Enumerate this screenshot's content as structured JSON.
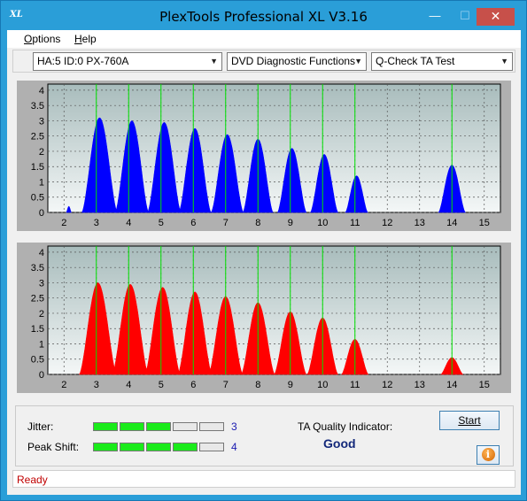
{
  "window": {
    "title": "PlexTools Professional XL V3.16",
    "icon_text": "XL",
    "min_glyph": "—",
    "max_glyph": "☐",
    "close_glyph": "✕"
  },
  "menu": {
    "options": {
      "mnemonic": "O",
      "rest": "ptions"
    },
    "help": {
      "mnemonic": "H",
      "rest": "elp"
    }
  },
  "toolbar": {
    "drive": "HA:5 ID:0  PX-760A",
    "function": "DVD Diagnostic Functions",
    "test": "Q-Check TA Test"
  },
  "chart_data": [
    {
      "type": "area",
      "name": "blue",
      "color": "#0000ff",
      "x_ticks": [
        "2",
        "3",
        "4",
        "5",
        "6",
        "7",
        "8",
        "9",
        "10",
        "11",
        "12",
        "13",
        "14",
        "15"
      ],
      "y_ticks": [
        "4",
        "3.5",
        "3",
        "2.5",
        "2",
        "1.5",
        "1",
        "0.5",
        "0"
      ],
      "xlim": [
        1.5,
        15.5
      ],
      "ylim": [
        0,
        4.2
      ],
      "grid": true,
      "green_markers": [
        3,
        4,
        5,
        6,
        7,
        8,
        9,
        10,
        11,
        14
      ],
      "peaks": [
        {
          "x": 2.15,
          "height": 0.2,
          "half_width": 0.08
        },
        {
          "x": 3.1,
          "height": 3.1,
          "half_width": 0.55
        },
        {
          "x": 4.1,
          "height": 3.0,
          "half_width": 0.52
        },
        {
          "x": 5.1,
          "height": 2.95,
          "half_width": 0.52
        },
        {
          "x": 6.05,
          "height": 2.75,
          "half_width": 0.5
        },
        {
          "x": 7.05,
          "height": 2.55,
          "half_width": 0.5
        },
        {
          "x": 8.0,
          "height": 2.4,
          "half_width": 0.47
        },
        {
          "x": 9.05,
          "height": 2.1,
          "half_width": 0.45
        },
        {
          "x": 10.05,
          "height": 1.9,
          "half_width": 0.43
        },
        {
          "x": 11.05,
          "height": 1.2,
          "half_width": 0.35
        },
        {
          "x": 14.0,
          "height": 1.55,
          "half_width": 0.42
        }
      ]
    },
    {
      "type": "area",
      "name": "red",
      "color": "#ff0000",
      "x_ticks": [
        "2",
        "3",
        "4",
        "5",
        "6",
        "7",
        "8",
        "9",
        "10",
        "11",
        "12",
        "13",
        "14",
        "15"
      ],
      "y_ticks": [
        "4",
        "3.5",
        "3",
        "2.5",
        "2",
        "1.5",
        "1",
        "0.5",
        "0"
      ],
      "xlim": [
        1.5,
        15.5
      ],
      "ylim": [
        0,
        4.2
      ],
      "grid": true,
      "green_markers": [
        3,
        4,
        5,
        6,
        7,
        8,
        9,
        10,
        11,
        14
      ],
      "peaks": [
        {
          "x": 3.05,
          "height": 3.0,
          "half_width": 0.58
        },
        {
          "x": 4.05,
          "height": 2.95,
          "half_width": 0.56
        },
        {
          "x": 5.05,
          "height": 2.85,
          "half_width": 0.55
        },
        {
          "x": 6.05,
          "height": 2.7,
          "half_width": 0.53
        },
        {
          "x": 7.0,
          "height": 2.55,
          "half_width": 0.53
        },
        {
          "x": 8.0,
          "height": 2.35,
          "half_width": 0.52
        },
        {
          "x": 9.0,
          "height": 2.05,
          "half_width": 0.5
        },
        {
          "x": 10.0,
          "height": 1.85,
          "half_width": 0.48
        },
        {
          "x": 11.0,
          "height": 1.15,
          "half_width": 0.42
        },
        {
          "x": 14.0,
          "height": 0.55,
          "half_width": 0.35
        }
      ]
    }
  ],
  "bottom": {
    "jitter_label": "Jitter:",
    "jitter_value": "3",
    "jitter_level": 3,
    "peak_label": "Peak Shift:",
    "peak_value": "4",
    "peak_level": 4,
    "bar_segments": 5,
    "ta_label": "TA Quality Indicator:",
    "ta_value": "Good",
    "start_label": "Start",
    "info_glyph": "i"
  },
  "status": {
    "text": "Ready"
  }
}
